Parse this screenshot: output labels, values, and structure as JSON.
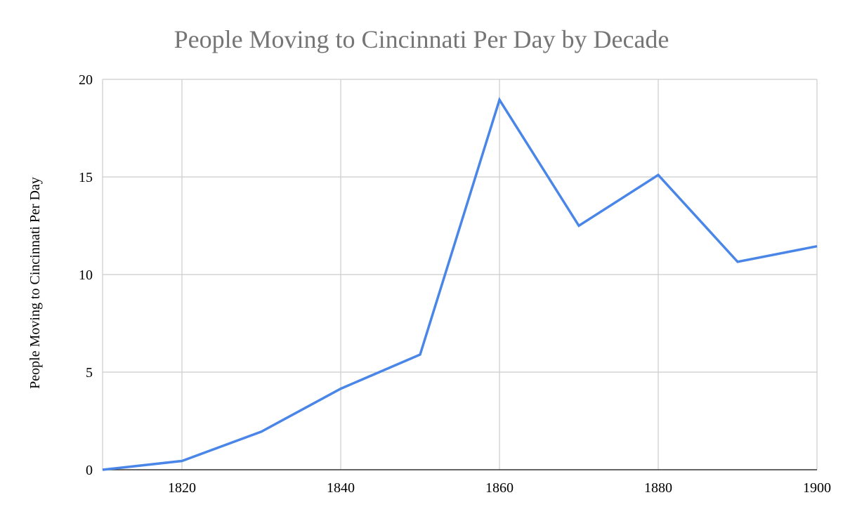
{
  "chart_data": {
    "type": "line",
    "title": "People Moving to Cincinnati Per Day by Decade",
    "xlabel": "",
    "ylabel": "People Moving to Cincinnati Per Day",
    "xlim": [
      1810,
      1900
    ],
    "ylim": [
      0,
      20
    ],
    "x_ticks": [
      1820,
      1840,
      1860,
      1880,
      1900
    ],
    "y_ticks": [
      0,
      5,
      10,
      15,
      20
    ],
    "grid": true,
    "legend": "none",
    "series": [
      {
        "x": [
          1810,
          1820,
          1830,
          1840,
          1850,
          1860,
          1870,
          1880,
          1890,
          1900
        ],
        "values": [
          0,
          0.45,
          1.95,
          4.15,
          5.9,
          18.95,
          12.5,
          15.1,
          10.65,
          11.45
        ],
        "color": "#4a86e8"
      }
    ]
  },
  "colors": {
    "grid": "#cccccc",
    "axis": "#333333",
    "title": "#757575",
    "line": "#4a86e8"
  }
}
